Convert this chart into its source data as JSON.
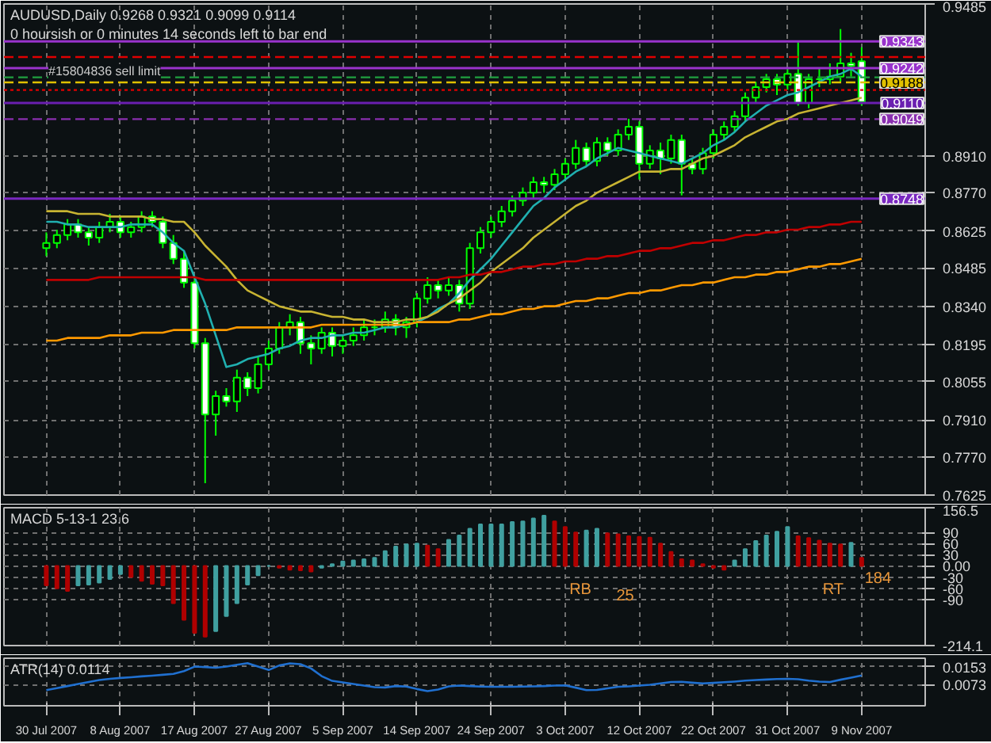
{
  "chart_data": [
    {
      "type": "candlestick",
      "title": "AUDUSD,Daily  0.9268 0.9321 0.9099 0.9114",
      "subtitle": "0 hoursish or 0 minutes 14 seconds left to bar end",
      "categories": [
        null,
        null,
        null,
        null,
        null,
        null,
        null,
        null,
        null,
        null,
        null,
        null,
        null,
        null,
        null,
        null,
        null,
        null,
        null,
        null,
        null,
        null,
        null,
        null,
        null,
        null,
        null,
        null,
        null,
        null,
        null,
        null,
        null,
        null,
        null,
        null,
        null,
        null,
        null,
        null,
        null,
        null,
        null,
        null,
        null,
        null,
        null,
        null,
        null,
        null,
        null,
        null,
        null,
        null,
        null,
        null,
        null,
        null,
        null,
        null,
        null,
        null,
        null,
        null,
        null,
        null,
        null,
        null,
        null,
        null,
        null,
        null,
        null,
        null,
        null,
        null,
        null,
        null
      ],
      "ohlc": [
        [
          0.856,
          0.862,
          0.853,
          0.858
        ],
        [
          0.858,
          0.863,
          0.856,
          0.861
        ],
        [
          0.861,
          0.867,
          0.859,
          0.865
        ],
        [
          0.865,
          0.867,
          0.86,
          0.862
        ],
        [
          0.862,
          0.864,
          0.857,
          0.86
        ],
        [
          0.86,
          0.866,
          0.858,
          0.864
        ],
        [
          0.864,
          0.869,
          0.862,
          0.866
        ],
        [
          0.866,
          0.868,
          0.86,
          0.862
        ],
        [
          0.862,
          0.866,
          0.86,
          0.864
        ],
        [
          0.864,
          0.87,
          0.862,
          0.868
        ],
        [
          0.868,
          0.87,
          0.864,
          0.866
        ],
        [
          0.866,
          0.868,
          0.856,
          0.858
        ],
        [
          0.858,
          0.861,
          0.85,
          0.852
        ],
        [
          0.852,
          0.855,
          0.841,
          0.843
        ],
        [
          0.843,
          0.845,
          0.818,
          0.82
        ],
        [
          0.82,
          0.822,
          0.767,
          0.793
        ],
        [
          0.793,
          0.802,
          0.785,
          0.8
        ],
        [
          0.8,
          0.803,
          0.796,
          0.798
        ],
        [
          0.798,
          0.81,
          0.794,
          0.807
        ],
        [
          0.807,
          0.809,
          0.8,
          0.803
        ],
        [
          0.803,
          0.815,
          0.801,
          0.812
        ],
        [
          0.812,
          0.821,
          0.81,
          0.818
        ],
        [
          0.818,
          0.828,
          0.816,
          0.826
        ],
        [
          0.826,
          0.831,
          0.823,
          0.828
        ],
        [
          0.828,
          0.83,
          0.816,
          0.82
        ],
        [
          0.82,
          0.823,
          0.812,
          0.818
        ],
        [
          0.818,
          0.826,
          0.816,
          0.824
        ],
        [
          0.824,
          0.826,
          0.815,
          0.819
        ],
        [
          0.819,
          0.823,
          0.816,
          0.821
        ],
        [
          0.821,
          0.826,
          0.819,
          0.823
        ],
        [
          0.823,
          0.829,
          0.821,
          0.826
        ],
        [
          0.826,
          0.829,
          0.823,
          0.826
        ],
        [
          0.826,
          0.832,
          0.824,
          0.829
        ],
        [
          0.829,
          0.831,
          0.823,
          0.826
        ],
        [
          0.826,
          0.83,
          0.822,
          0.828
        ],
        [
          0.828,
          0.839,
          0.826,
          0.837
        ],
        [
          0.837,
          0.845,
          0.835,
          0.842
        ],
        [
          0.842,
          0.844,
          0.837,
          0.84
        ],
        [
          0.84,
          0.845,
          0.838,
          0.842
        ],
        [
          0.842,
          0.844,
          0.832,
          0.835
        ],
        [
          0.835,
          0.858,
          0.833,
          0.856
        ],
        [
          0.856,
          0.864,
          0.854,
          0.862
        ],
        [
          0.862,
          0.868,
          0.86,
          0.866
        ],
        [
          0.866,
          0.872,
          0.864,
          0.87
        ],
        [
          0.87,
          0.876,
          0.868,
          0.874
        ],
        [
          0.874,
          0.879,
          0.872,
          0.877
        ],
        [
          0.877,
          0.883,
          0.875,
          0.881
        ],
        [
          0.881,
          0.883,
          0.877,
          0.88
        ],
        [
          0.88,
          0.886,
          0.878,
          0.884
        ],
        [
          0.884,
          0.89,
          0.882,
          0.888
        ],
        [
          0.888,
          0.897,
          0.886,
          0.894
        ],
        [
          0.894,
          0.896,
          0.887,
          0.889
        ],
        [
          0.889,
          0.898,
          0.887,
          0.896
        ],
        [
          0.896,
          0.898,
          0.891,
          0.893
        ],
        [
          0.893,
          0.901,
          0.891,
          0.899
        ],
        [
          0.899,
          0.905,
          0.897,
          0.902
        ],
        [
          0.902,
          0.904,
          0.882,
          0.888
        ],
        [
          0.888,
          0.895,
          0.886,
          0.893
        ],
        [
          0.893,
          0.896,
          0.884,
          0.89
        ],
        [
          0.89,
          0.899,
          0.888,
          0.897
        ],
        [
          0.897,
          0.899,
          0.876,
          0.888
        ],
        [
          0.888,
          0.89,
          0.884,
          0.886
        ],
        [
          0.886,
          0.894,
          0.884,
          0.892
        ],
        [
          0.892,
          0.901,
          0.89,
          0.899
        ],
        [
          0.899,
          0.904,
          0.897,
          0.902
        ],
        [
          0.902,
          0.908,
          0.9,
          0.906
        ],
        [
          0.906,
          0.915,
          0.904,
          0.913
        ],
        [
          0.913,
          0.919,
          0.911,
          0.917
        ],
        [
          0.917,
          0.922,
          0.915,
          0.92
        ],
        [
          0.92,
          0.922,
          0.914,
          0.918
        ],
        [
          0.918,
          0.924,
          0.916,
          0.922
        ],
        [
          0.922,
          0.934,
          0.91,
          0.911
        ],
        [
          0.911,
          0.922,
          0.909,
          0.92
        ],
        [
          0.92,
          0.924,
          0.917,
          0.92
        ],
        [
          0.92,
          0.926,
          0.918,
          0.921
        ],
        [
          0.921,
          0.939,
          0.919,
          0.926
        ],
        [
          0.926,
          0.93,
          0.921,
          0.925
        ],
        [
          0.9268,
          0.9321,
          0.9099,
          0.9114
        ]
      ],
      "series": [
        {
          "type": "line",
          "color": "#20b0b0",
          "values": [
            0.866,
            0.866,
            0.865,
            0.865,
            0.864,
            0.864,
            0.864,
            0.864,
            0.865,
            0.865,
            0.865,
            0.862,
            0.858,
            0.855,
            0.845,
            0.835,
            0.823,
            0.811,
            0.812,
            0.814,
            0.815,
            0.816,
            0.818,
            0.819,
            0.821,
            0.822,
            0.822,
            0.823,
            0.823,
            0.824,
            0.824,
            0.825,
            0.826,
            0.826,
            0.827,
            0.828,
            0.83,
            0.833,
            0.835,
            0.839,
            0.844,
            0.848,
            0.852,
            0.857,
            0.862,
            0.867,
            0.872,
            0.875,
            0.879,
            0.882,
            0.885,
            0.887,
            0.89,
            0.892,
            0.894,
            0.893,
            0.892,
            0.891,
            0.89,
            0.889,
            0.888,
            0.89,
            0.892,
            0.895,
            0.897,
            0.9,
            0.904,
            0.907,
            0.91,
            0.912,
            0.914,
            0.915,
            0.917,
            0.919,
            0.921,
            0.922,
            0.924,
            0.921
          ]
        },
        {
          "type": "line",
          "color": "#c8b432",
          "values": [
            0.87,
            0.87,
            0.87,
            0.869,
            0.869,
            0.869,
            0.868,
            0.868,
            0.868,
            0.868,
            0.867,
            0.867,
            0.866,
            0.866,
            0.862,
            0.857,
            0.853,
            0.849,
            0.844,
            0.84,
            0.838,
            0.836,
            0.834,
            0.833,
            0.832,
            0.832,
            0.831,
            0.83,
            0.83,
            0.829,
            0.829,
            0.828,
            0.828,
            0.828,
            0.829,
            0.829,
            0.83,
            0.832,
            0.835,
            0.837,
            0.84,
            0.843,
            0.847,
            0.85,
            0.853,
            0.856,
            0.86,
            0.863,
            0.866,
            0.869,
            0.872,
            0.874,
            0.877,
            0.879,
            0.881,
            0.883,
            0.885,
            0.885,
            0.885,
            0.886,
            0.886,
            0.888,
            0.89,
            0.891,
            0.893,
            0.895,
            0.898,
            0.9,
            0.902,
            0.904,
            0.905,
            0.907,
            0.908,
            0.909,
            0.91,
            0.911,
            0.912,
            0.913
          ]
        },
        {
          "type": "line",
          "color": "#c00000",
          "values": [
            0.844,
            0.844,
            0.844,
            0.844,
            0.844,
            0.845,
            0.845,
            0.845,
            0.845,
            0.845,
            0.845,
            0.845,
            0.845,
            0.845,
            0.845,
            0.844,
            0.844,
            0.844,
            0.844,
            0.844,
            0.844,
            0.844,
            0.844,
            0.844,
            0.844,
            0.844,
            0.844,
            0.844,
            0.844,
            0.844,
            0.844,
            0.844,
            0.844,
            0.844,
            0.844,
            0.844,
            0.844,
            0.844,
            0.845,
            0.845,
            0.846,
            0.846,
            0.847,
            0.847,
            0.848,
            0.849,
            0.849,
            0.85,
            0.85,
            0.851,
            0.851,
            0.852,
            0.852,
            0.853,
            0.853,
            0.854,
            0.855,
            0.855,
            0.856,
            0.856,
            0.857,
            0.858,
            0.858,
            0.859,
            0.859,
            0.86,
            0.861,
            0.861,
            0.862,
            0.862,
            0.863,
            0.863,
            0.864,
            0.864,
            0.865,
            0.865,
            0.866,
            0.866
          ]
        },
        {
          "type": "line",
          "color": "#ff9900",
          "values": [
            0.821,
            0.821,
            0.822,
            0.822,
            0.822,
            0.822,
            0.823,
            0.823,
            0.823,
            0.824,
            0.824,
            0.824,
            0.825,
            0.825,
            0.825,
            0.825,
            0.825,
            0.825,
            0.826,
            0.826,
            0.826,
            0.826,
            0.826,
            0.826,
            0.826,
            0.826,
            0.827,
            0.827,
            0.827,
            0.827,
            0.827,
            0.827,
            0.827,
            0.827,
            0.827,
            0.828,
            0.828,
            0.828,
            0.828,
            0.829,
            0.829,
            0.83,
            0.831,
            0.831,
            0.832,
            0.833,
            0.833,
            0.834,
            0.834,
            0.835,
            0.836,
            0.836,
            0.837,
            0.837,
            0.838,
            0.839,
            0.839,
            0.84,
            0.84,
            0.841,
            0.842,
            0.842,
            0.843,
            0.843,
            0.844,
            0.845,
            0.845,
            0.846,
            0.846,
            0.847,
            0.847,
            0.848,
            0.849,
            0.849,
            0.85,
            0.85,
            0.851,
            0.852
          ]
        }
      ],
      "ref_lines": [
        {
          "axis": "y",
          "value": 0.9343,
          "label": "0.9343",
          "color": "#9933cc",
          "line_style": "solid"
        },
        {
          "axis": "y",
          "value": 0.9284,
          "label": null,
          "color": "#e00000",
          "line_style": "dashed"
        },
        {
          "axis": "y",
          "value": 0.9242,
          "label": "0.9242",
          "color": "#9933cc",
          "line_style": "solid"
        },
        {
          "axis": "y",
          "value": 0.9207,
          "label": null,
          "color": "#20a040",
          "line_style": "dashed"
        },
        {
          "axis": "y",
          "value": 0.9188,
          "label": "0.9188",
          "color": "#e0c000",
          "line_style": "dashed"
        },
        {
          "axis": "y",
          "value": 0.9159,
          "label": null,
          "color": "#e00000",
          "line_style": "dotted"
        },
        {
          "axis": "y",
          "value": 0.911,
          "label": "0.9110",
          "color": "#6a1fb0",
          "line_style": "solid"
        },
        {
          "axis": "y",
          "value": 0.9049,
          "label": "0.9049",
          "color": "#8a2fb0",
          "line_style": "dashed"
        },
        {
          "axis": "y",
          "value": 0.8748,
          "label": "0.8748",
          "color": "#7a28c0",
          "line_style": "solid"
        }
      ],
      "annotations": [
        "#15804836 sell limit"
      ],
      "ylim": [
        0.7625,
        0.9485
      ],
      "yticks": [
        {
          "value": 0.7625,
          "label": "0.7625"
        },
        {
          "value": 0.777,
          "label": "0.7770"
        },
        {
          "value": 0.791,
          "label": "0.7910"
        },
        {
          "value": 0.8055,
          "label": "0.8055"
        },
        {
          "value": 0.8195,
          "label": "0.8195"
        },
        {
          "value": 0.834,
          "label": "0.8340"
        },
        {
          "value": 0.8485,
          "label": "0.8485"
        },
        {
          "value": 0.8625,
          "label": "0.8625"
        },
        {
          "value": 0.877,
          "label": "0.8770"
        },
        {
          "value": 0.891,
          "label": "0.8910"
        },
        {
          "value": 0.9485,
          "label": "0.9485"
        }
      ],
      "grid": true,
      "tick_labels": "y"
    },
    {
      "type": "bar",
      "title": "MACD 5-13-1 23.6",
      "categories": [
        null,
        null,
        null,
        null,
        null,
        null,
        null,
        null,
        null,
        null,
        null,
        null,
        null,
        null,
        null,
        null,
        null,
        null,
        null,
        null,
        null,
        null,
        null,
        null,
        null,
        null,
        null,
        null,
        null,
        null,
        null,
        null,
        null,
        null,
        null,
        null,
        null,
        null,
        null,
        null,
        null,
        null,
        null,
        null,
        null,
        null,
        null,
        null,
        null,
        null,
        null,
        null,
        null,
        null,
        null,
        null,
        null,
        null,
        null,
        null,
        null,
        null,
        null,
        null,
        null,
        null,
        null,
        null,
        null,
        null,
        null,
        null,
        null,
        null,
        null,
        null,
        null,
        null
      ],
      "values": [
        -52,
        -60,
        -67,
        -52,
        -50,
        -45,
        -35,
        -22,
        -30,
        -40,
        -48,
        -52,
        -100,
        -145,
        -180,
        -190,
        -175,
        -135,
        -100,
        -50,
        -25,
        0,
        -5,
        -10,
        -12,
        -15,
        -5,
        5,
        12,
        15,
        18,
        22,
        40,
        52,
        58,
        60,
        55,
        45,
        70,
        82,
        100,
        112,
        112,
        112,
        118,
        120,
        128,
        135,
        120,
        105,
        90,
        95,
        100,
        88,
        85,
        80,
        78,
        76,
        60,
        38,
        18,
        15,
        5,
        -5,
        -10,
        15,
        45,
        67,
        82,
        92,
        105,
        80,
        75,
        68,
        60,
        58,
        62,
        22
      ],
      "colors": [
        "#b00000",
        "#b00000",
        "#b00000",
        "#40a0a0",
        "#40a0a0",
        "#40a0a0",
        "#40a0a0",
        "#40a0a0",
        "#b00000",
        "#b00000",
        "#b00000",
        "#b00000",
        "#b00000",
        "#b00000",
        "#b00000",
        "#b00000",
        "#40a0a0",
        "#40a0a0",
        "#40a0a0",
        "#40a0a0",
        "#40a0a0",
        "#40a0a0",
        "#b00000",
        "#b00000",
        "#b00000",
        "#b00000",
        "#40a0a0",
        "#40a0a0",
        "#40a0a0",
        "#40a0a0",
        "#40a0a0",
        "#40a0a0",
        "#40a0a0",
        "#40a0a0",
        "#40a0a0",
        "#40a0a0",
        "#b00000",
        "#b00000",
        "#40a0a0",
        "#40a0a0",
        "#40a0a0",
        "#40a0a0",
        "#40a0a0",
        "#40a0a0",
        "#40a0a0",
        "#40a0a0",
        "#40a0a0",
        "#40a0a0",
        "#b00000",
        "#b00000",
        "#b00000",
        "#40a0a0",
        "#40a0a0",
        "#b00000",
        "#b00000",
        "#b00000",
        "#b00000",
        "#b00000",
        "#b00000",
        "#b00000",
        "#b00000",
        "#b00000",
        "#b00000",
        "#b00000",
        "#b00000",
        "#40a0a0",
        "#40a0a0",
        "#40a0a0",
        "#40a0a0",
        "#40a0a0",
        "#40a0a0",
        "#b00000",
        "#b00000",
        "#b00000",
        "#b00000",
        "#b00000",
        "#40a0a0",
        "#b00000"
      ],
      "annotations": [
        "RB",
        "25",
        "RT",
        "184"
      ],
      "ylim": [
        -214.1,
        156.5
      ],
      "yticks": [
        -214.1,
        -90,
        -60,
        -30,
        {
          "value": 0,
          "label": "0.00"
        },
        30,
        60,
        90,
        156.5
      ],
      "grid": true,
      "tick_labels": "y"
    },
    {
      "type": "line",
      "title": "ATR(14) 0.0114",
      "categories": [
        "30 Jul 2007",
        null,
        null,
        null,
        null,
        null,
        null,
        "8 Aug 2007",
        null,
        null,
        null,
        null,
        null,
        null,
        "17 Aug 2007",
        null,
        null,
        null,
        null,
        null,
        null,
        "27 Aug 2007",
        null,
        null,
        null,
        null,
        null,
        null,
        "5 Sep 2007",
        null,
        null,
        null,
        null,
        null,
        null,
        "14 Sep 2007",
        null,
        null,
        null,
        null,
        null,
        null,
        "24 Sep 2007",
        null,
        null,
        null,
        null,
        null,
        null,
        "3 Oct 2007",
        null,
        null,
        null,
        null,
        null,
        null,
        "12 Oct 2007",
        null,
        null,
        null,
        null,
        null,
        null,
        "22 Oct 2007",
        null,
        null,
        null,
        null,
        null,
        null,
        "31 Oct 2007",
        null,
        null,
        null,
        null,
        null,
        null,
        "9 Nov 2007"
      ],
      "values": [
        0.0049,
        0.0058,
        0.0067,
        0.0076,
        0.0085,
        0.0094,
        0.0099,
        0.0103,
        0.0106,
        0.011,
        0.0113,
        0.0117,
        0.0121,
        0.0133,
        0.0153,
        0.0151,
        0.0148,
        0.0153,
        0.0161,
        0.0168,
        0.0153,
        0.0138,
        0.0158,
        0.0167,
        0.0164,
        0.0145,
        0.0111,
        0.009,
        0.0083,
        0.0076,
        0.0069,
        0.0062,
        0.0061,
        0.0067,
        0.0065,
        0.0054,
        0.0045,
        0.0052,
        0.0066,
        0.0069,
        0.0067,
        0.0065,
        0.0064,
        0.0064,
        0.0064,
        0.0065,
        0.0066,
        0.0067,
        0.0069,
        0.007,
        0.006,
        0.0049,
        0.005,
        0.0057,
        0.0064,
        0.0066,
        0.0069,
        0.0073,
        0.0079,
        0.0085,
        0.0086,
        0.0082,
        0.0079,
        0.0081,
        0.0084,
        0.0087,
        0.0091,
        0.0094,
        0.0096,
        0.0098,
        0.0099,
        0.0097,
        0.0091,
        0.0087,
        0.0085,
        0.0095,
        0.0104,
        0.0114
      ],
      "color": "#2070d0",
      "ylim": [
        -0.002,
        0.019
      ],
      "yticks": [
        0.0073,
        0.0153
      ],
      "grid": true
    }
  ]
}
